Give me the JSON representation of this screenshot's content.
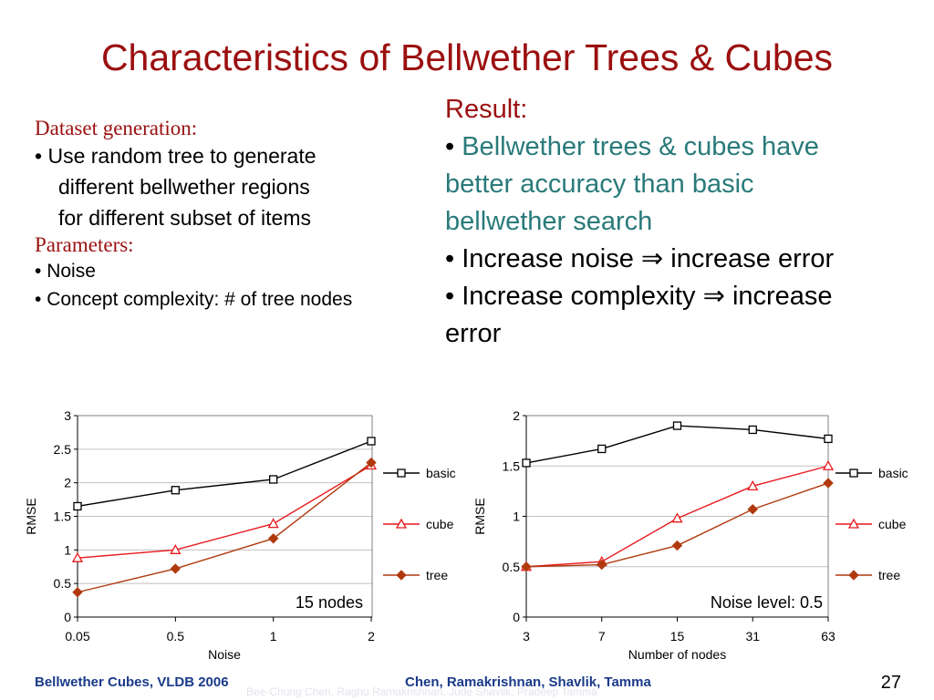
{
  "slide": {
    "title": "Characteristics of Bellwether Trees & Cubes",
    "left": {
      "heading1": "Dataset generation:",
      "bullet1_line1": "Use random tree to generate",
      "bullet1_line2": "different bellwether regions",
      "bullet1_line3": "for different subset of items",
      "heading2": "Parameters:",
      "param1": "Noise",
      "param2": "Concept complexity: # of tree nodes"
    },
    "right": {
      "heading": "Result:",
      "r1": "Bellwether trees & cubes have",
      "r1b": "better accuracy than basic",
      "r1c": "bellwether search",
      "r2a": "Increase noise",
      "r2b": "increase error",
      "r3a": "Increase complexity",
      "r3b": "increase",
      "r3c": "error"
    },
    "bullet_char": "•",
    "implies_char": "⇒",
    "footer_left": "Bellwether Cubes, VLDB 2006",
    "footer_center": "Chen, Ramakrishnan, Shavlik, Tamma",
    "footer_ghost": "Bee-Chung Chen, Raghu Ramakrishnan, Jude Shavlik, Pradeep Tamma",
    "page_number": "27"
  },
  "chart_data": [
    {
      "type": "line",
      "categories": [
        "0.05",
        "0.5",
        "1",
        "2"
      ],
      "series": [
        {
          "name": "basic",
          "values": [
            1.65,
            1.89,
            2.05,
            2.62
          ],
          "color": "#000000",
          "marker": "square"
        },
        {
          "name": "cube",
          "values": [
            0.88,
            1.0,
            1.39,
            2.26
          ],
          "color": "#e8191e",
          "marker": "triangle"
        },
        {
          "name": "tree",
          "values": [
            0.37,
            0.72,
            1.17,
            2.3
          ],
          "color": "#b03a0e",
          "marker": "diamond"
        }
      ],
      "xlabel": "Noise",
      "ylabel": "RMSE",
      "ylim": [
        0,
        3
      ],
      "yticks": [
        "0",
        "0.5",
        "1",
        "1.5",
        "2",
        "2.5",
        "3"
      ],
      "annotation": "15 nodes",
      "grid": true,
      "legend": "right"
    },
    {
      "type": "line",
      "categories": [
        "3",
        "7",
        "15",
        "31",
        "63"
      ],
      "series": [
        {
          "name": "basic",
          "values": [
            1.53,
            1.67,
            1.9,
            1.86,
            1.77
          ],
          "color": "#000000",
          "marker": "square"
        },
        {
          "name": "cube",
          "values": [
            0.5,
            0.55,
            0.98,
            1.3,
            1.5
          ],
          "color": "#e8191e",
          "marker": "triangle"
        },
        {
          "name": "tree",
          "values": [
            0.5,
            0.52,
            0.71,
            1.07,
            1.33
          ],
          "color": "#b03a0e",
          "marker": "diamond"
        }
      ],
      "xlabel": "Number of nodes",
      "ylabel": "RMSE",
      "ylim": [
        0,
        2
      ],
      "yticks": [
        "0",
        "0.5",
        "1",
        "1.5",
        "2"
      ],
      "annotation": "Noise level: 0.5",
      "grid": true,
      "legend": "right"
    }
  ]
}
